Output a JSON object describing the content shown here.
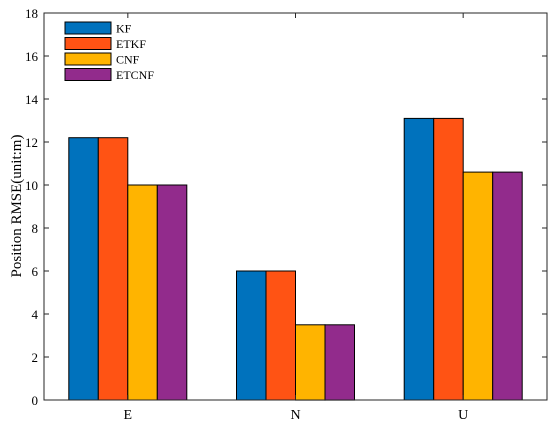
{
  "chart_data": {
    "type": "bar",
    "categories": [
      "E",
      "N",
      "U"
    ],
    "series": [
      {
        "name": "KF",
        "color": "#0072BD",
        "values": [
          12.2,
          6.0,
          13.1
        ]
      },
      {
        "name": "ETKF",
        "color": "#FF5314",
        "values": [
          12.2,
          6.0,
          13.1
        ]
      },
      {
        "name": "CNF",
        "color": "#FFB400",
        "values": [
          10.0,
          3.5,
          10.6
        ]
      },
      {
        "name": "ETCNF",
        "color": "#922B8C",
        "values": [
          10.0,
          3.5,
          10.6
        ]
      }
    ],
    "title": "",
    "xlabel": "",
    "ylabel": "Position RMSE(unit:m)",
    "ylim": [
      0,
      18
    ],
    "yticks": [
      0,
      2,
      4,
      6,
      8,
      10,
      12,
      14,
      16,
      18
    ],
    "grid": false,
    "legend_position": "top-left"
  }
}
